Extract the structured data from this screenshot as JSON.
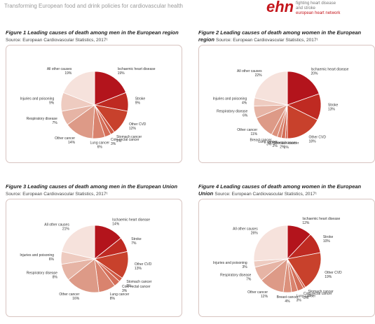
{
  "header": {
    "title": "Transforming European food and drink policies for cardiovascular health",
    "logo": "ehn",
    "tagline_1": "fighting heart disease",
    "tagline_2": "and stroke",
    "network": "european heart network"
  },
  "chart_data": [
    {
      "type": "pie",
      "title": "Figure 1 Leading causes of death among men in the European region",
      "subtitle": "Source: European Cardiovascular Statistics, 2017¹",
      "categories": [
        "Ischaemic heart disease",
        "Stroke",
        "Other CVD",
        "Stomach cancer",
        "Colo-rectal cancer",
        "Lung cancer",
        "Other cancer",
        "Respiratory disease",
        "Injuries and poisoning",
        "All other causes"
      ],
      "values": [
        19,
        9,
        12,
        2,
        3,
        6,
        14,
        7,
        9,
        19
      ],
      "value_labels": [
        "19%",
        "9%",
        "12%",
        "2%",
        "3%",
        "6%",
        "14%",
        "7%",
        "9%",
        "19%"
      ],
      "colors": [
        "#b3141c",
        "#bf2a22",
        "#c8412c",
        "#cf5a44",
        "#d46e58",
        "#d9836e",
        "#dd9a87",
        "#e6b4a5",
        "#eecbc0",
        "#f6e2dc"
      ]
    },
    {
      "type": "pie",
      "title": "Figure 2 Leading causes of death among women in the European region",
      "subtitle": "Source: European Cardiovascular Statistics, 2017¹",
      "categories": [
        "Ischaemic heart disease",
        "Stroke",
        "Other CVD",
        "Stomach cancer",
        "Colo-rectal cancer",
        "Lung cancer",
        "Breast cancer",
        "Other cancer",
        "Respiratory disease",
        "Injuries and poisoning",
        "All other causes"
      ],
      "values": [
        20,
        13,
        18,
        1,
        2,
        2,
        3,
        11,
        6,
        4,
        22
      ],
      "value_labels": [
        "20%",
        "13%",
        "18%",
        "1%",
        "2%",
        "2%",
        "3%",
        "11%",
        "6%",
        "4%",
        "22%"
      ],
      "colors": [
        "#b3141c",
        "#bf2a22",
        "#c8412c",
        "#cf5a44",
        "#d46e58",
        "#d9836e",
        "#dc917c",
        "#dd9a87",
        "#e6b4a5",
        "#eecbc0",
        "#f6e2dc"
      ]
    },
    {
      "type": "pie",
      "title": "Figure 3 Leading causes of death among men in the European Union",
      "subtitle": "Source: European Cardiovascular Statistics, 2017¹",
      "categories": [
        "Ischaemic heart disease",
        "Stroke",
        "Other CVD",
        "Stomach cancer",
        "Colo-rectal cancer",
        "Lung cancer",
        "Other cancer",
        "Respiratory disease",
        "Injuries and poisoning",
        "All other causes"
      ],
      "values": [
        14,
        7,
        13,
        2,
        3,
        8,
        16,
        8,
        6,
        21
      ],
      "value_labels": [
        "14%",
        "7%",
        "13%",
        "2%",
        "3%",
        "8%",
        "16%",
        "8%",
        "6%",
        "21%"
      ],
      "colors": [
        "#b3141c",
        "#bf2a22",
        "#c8412c",
        "#cf5a44",
        "#d46e58",
        "#d9836e",
        "#dd9a87",
        "#e6b4a5",
        "#eecbc0",
        "#f6e2dc"
      ]
    },
    {
      "type": "pie",
      "title": "Figure 4 Leading causes of death among women in the European Union",
      "subtitle": "Source: European Cardiovascular Statistics, 2017¹",
      "categories": [
        "Ischaemic heart disease",
        "Stroke",
        "Other CVD",
        "Stomach cancer",
        "Colo-rectal cancer",
        "Lung cancer",
        "Breast cancer",
        "Other cancer",
        "Respiratory disease",
        "Injuries and poisoning",
        "All other causes"
      ],
      "values": [
        12,
        10,
        19,
        1,
        3,
        3,
        4,
        12,
        7,
        3,
        26
      ],
      "value_labels": [
        "12%",
        "10%",
        "19%",
        "1%",
        "3%",
        "3%",
        "4%",
        "12%",
        "7%",
        "3%",
        "26%"
      ],
      "colors": [
        "#b3141c",
        "#bf2a22",
        "#c8412c",
        "#cf5a44",
        "#d46e58",
        "#d9836e",
        "#dc917c",
        "#dd9a87",
        "#e6b4a5",
        "#eecbc0",
        "#f6e2dc"
      ]
    }
  ]
}
